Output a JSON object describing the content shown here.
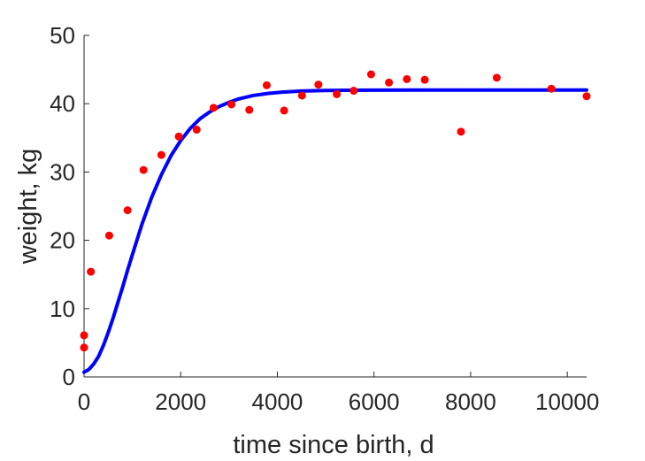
{
  "chart_data": {
    "type": "scatter",
    "xlabel": "time since birth, d",
    "ylabel": "weight, kg",
    "xlim": [
      0,
      10400
    ],
    "ylim": [
      0,
      50
    ],
    "x_ticks": [
      0,
      2000,
      4000,
      6000,
      8000,
      10000
    ],
    "y_ticks": [
      0,
      10,
      20,
      30,
      40,
      50
    ],
    "x_tick_labels": [
      "0",
      "2000",
      "4000",
      "6000",
      "8000",
      "10000"
    ],
    "y_tick_labels": [
      "0",
      "10",
      "20",
      "30",
      "40",
      "50"
    ],
    "grid": false,
    "legend": "none",
    "series": [
      {
        "kind": "points",
        "color": "#ff0000",
        "x": [
          0,
          0,
          140,
          520,
          900,
          1230,
          1600,
          1960,
          2330,
          2680,
          3050,
          3420,
          3780,
          4140,
          4510,
          4850,
          5230,
          5580,
          5940,
          6310,
          6680,
          7050,
          7800,
          8540,
          9670,
          10400
        ],
        "y": [
          4.3,
          6.1,
          15.4,
          20.7,
          24.4,
          30.3,
          32.5,
          35.2,
          36.2,
          39.4,
          39.9,
          39.1,
          42.7,
          39.0,
          41.2,
          42.8,
          41.4,
          41.9,
          44.3,
          43.1,
          43.6,
          43.5,
          35.9,
          43.8,
          42.2,
          41.1
        ]
      },
      {
        "kind": "fitted-curve",
        "color": "#0000ff",
        "x": [
          0,
          100,
          200,
          300,
          400,
          500,
          600,
          700,
          800,
          900,
          1000,
          1200,
          1400,
          1600,
          1800,
          2000,
          2200,
          2400,
          2600,
          2800,
          3000,
          3200,
          3500,
          3800,
          4100,
          4500,
          5000,
          5500,
          6000,
          7000,
          8000,
          9000,
          10000,
          10400
        ],
        "y": [
          0.7,
          1.1,
          1.9,
          3.0,
          4.6,
          6.5,
          8.6,
          10.9,
          13.2,
          15.6,
          17.9,
          22.4,
          26.3,
          29.6,
          32.4,
          34.6,
          36.4,
          37.8,
          38.8,
          39.6,
          40.2,
          40.7,
          41.2,
          41.5,
          41.7,
          41.85,
          41.93,
          41.97,
          41.99,
          42.0,
          42.0,
          42.0,
          42.0,
          42.0
        ]
      }
    ]
  }
}
